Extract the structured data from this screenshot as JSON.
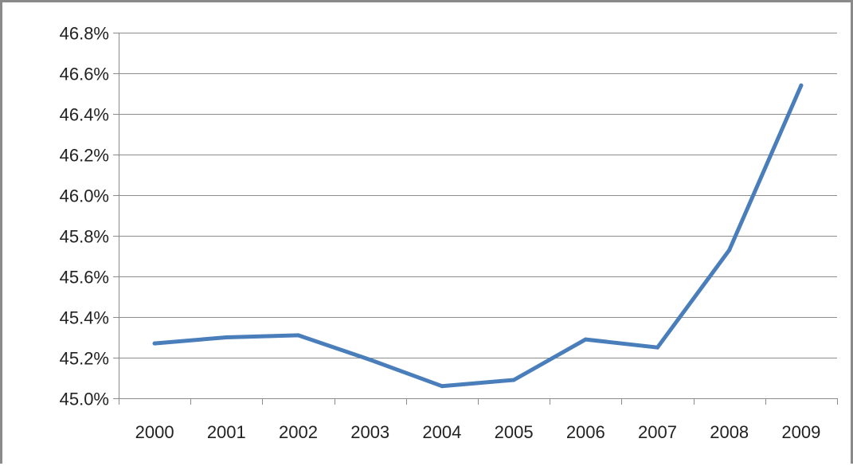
{
  "chart_data": {
    "type": "line",
    "title": "",
    "xlabel": "",
    "ylabel": "",
    "categories": [
      "2000",
      "2001",
      "2002",
      "2003",
      "2004",
      "2005",
      "2006",
      "2007",
      "2008",
      "2009"
    ],
    "series": [
      {
        "values": [
          45.27,
          45.3,
          45.31,
          45.19,
          45.06,
          45.09,
          45.29,
          45.25,
          45.73,
          46.54
        ],
        "color": "#4a7ebb"
      }
    ],
    "ylim": [
      45.0,
      46.8
    ],
    "yticks": [
      45.0,
      45.2,
      45.4,
      45.6,
      45.8,
      46.0,
      46.2,
      46.4,
      46.6,
      46.8
    ],
    "ytick_labels": [
      "45.0%",
      "45.2%",
      "45.4%",
      "45.6%",
      "45.8%",
      "46.0%",
      "46.2%",
      "46.4%",
      "46.6%",
      "46.8%"
    ],
    "grid": true,
    "legend": "none",
    "colors": {
      "line": "#4a7ebb",
      "grid": "#8c8c8c",
      "axis": "#8c8c8c",
      "frame": "#8a8a8a",
      "text": "#222222"
    }
  }
}
